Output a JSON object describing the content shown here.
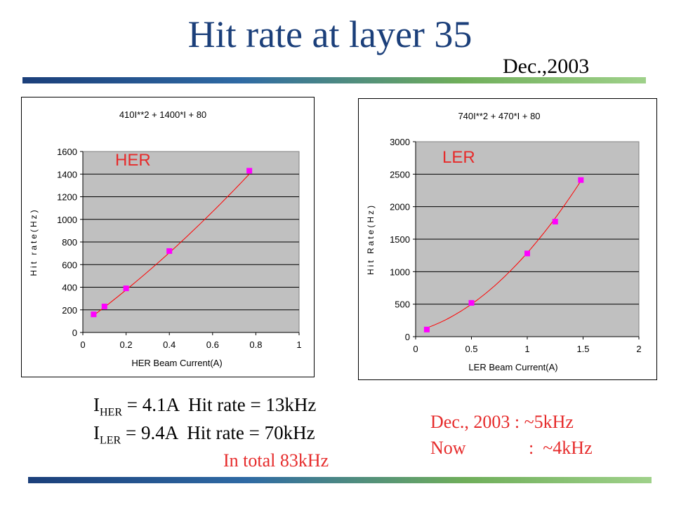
{
  "slide": {
    "title": "Hit rate at layer 35",
    "date": "Dec.,2003",
    "colors": {
      "title": "#1b3f7a",
      "highlight": "#e62b2b",
      "plot_bg": "#c0c0c0",
      "marker": "#ff00ff",
      "fit": "#ff0000"
    }
  },
  "info": {
    "her_line": {
      "symbol": "I",
      "sub": "HER",
      "text": " = 4.1A  Hit rate = 13kHz"
    },
    "ler_line": {
      "symbol": "I",
      "sub": "LER",
      "text": " = 9.4A  Hit rate = 70kHz"
    },
    "total": "In total 83kHz",
    "dec_line": "Dec., 2003 : ~5kHz",
    "now_label": "Now",
    "now_value": ":  ~4kHz"
  },
  "chart_data": [
    {
      "type": "scatter",
      "title": "410I**2 + 1400*I + 80",
      "label": "HER",
      "xlabel": "HER Beam Current(A)",
      "ylabel": "Hit rate(Hz)",
      "xlim": [
        0,
        1
      ],
      "ylim": [
        0,
        1600
      ],
      "xticks": [
        0,
        0.2,
        0.4,
        0.6,
        0.8,
        1
      ],
      "yticks": [
        0,
        200,
        400,
        600,
        800,
        1000,
        1200,
        1400,
        1600
      ],
      "fit": {
        "a": 410,
        "b": 1400,
        "c": 80,
        "range": [
          0.05,
          0.77
        ]
      },
      "points": [
        {
          "x": 0.05,
          "y": 160
        },
        {
          "x": 0.1,
          "y": 230
        },
        {
          "x": 0.2,
          "y": 390
        },
        {
          "x": 0.4,
          "y": 720
        },
        {
          "x": 0.77,
          "y": 1430
        }
      ],
      "grid": true
    },
    {
      "type": "scatter",
      "title": "740I**2 + 470*I + 80",
      "label": "LER",
      "xlabel": "LER Beam Current(A)",
      "ylabel": "Hit Rate(Hz)",
      "xlim": [
        0,
        2
      ],
      "ylim": [
        0,
        3000
      ],
      "xticks": [
        0,
        0.5,
        1,
        1.5,
        2
      ],
      "yticks": [
        0,
        500,
        1000,
        1500,
        2000,
        2500,
        3000
      ],
      "fit": {
        "a": 740,
        "b": 470,
        "c": 80,
        "range": [
          0.1,
          1.5
        ]
      },
      "points": [
        {
          "x": 0.1,
          "y": 110
        },
        {
          "x": 0.5,
          "y": 520
        },
        {
          "x": 1.0,
          "y": 1280
        },
        {
          "x": 1.25,
          "y": 1770
        },
        {
          "x": 1.48,
          "y": 2410
        }
      ],
      "grid": true
    }
  ]
}
